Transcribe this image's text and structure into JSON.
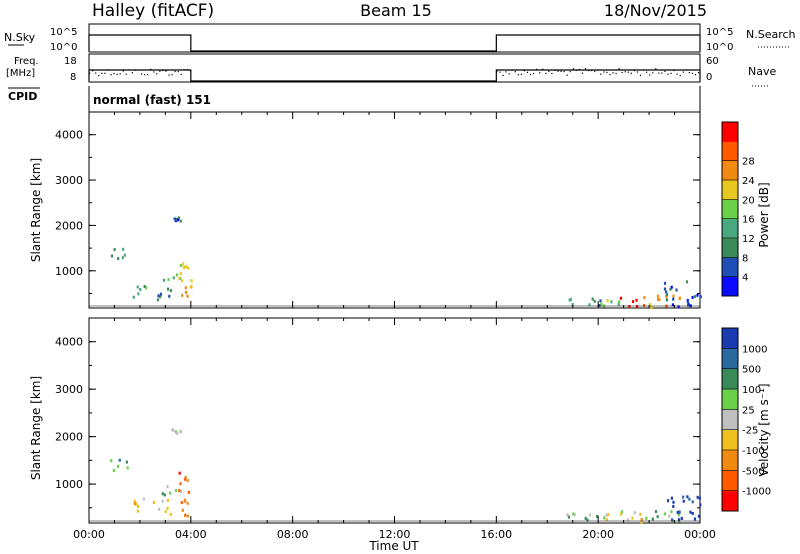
{
  "header": {
    "station": "Halley (fitACF)",
    "beam": "Beam 15",
    "date": "18/Nov/2015"
  },
  "panels": {
    "nsky": {
      "left_label": "N.Sky",
      "right_label": "N.Search",
      "ticks_left": [
        "10^5",
        "10^0"
      ],
      "ticks_right": [
        "10^5",
        "10^0"
      ]
    },
    "freq": {
      "left_label_1": "Freq.",
      "left_label_2": "[MHz]",
      "right_label": "Nave",
      "ticks_left": [
        "18",
        "8"
      ],
      "ticks_right": [
        "60",
        "0"
      ]
    },
    "cpid": {
      "label": "CPID",
      "value": "normal (fast) 151"
    }
  },
  "colors": {
    "power": [
      "#0a0aff",
      "#1f4fb5",
      "#3a8a5a",
      "#4aa880",
      "#6ad04a",
      "#e8c820",
      "#f08a10",
      "#ff5a00",
      "#ff0000"
    ],
    "velocity": [
      "#ff0000",
      "#ff5a00",
      "#f08a10",
      "#f0c020",
      "#c0c0c0",
      "#6ad04a",
      "#3a8a5a",
      "#2a6aa0",
      "#1a3ab0"
    ]
  },
  "chart_data": [
    {
      "type": "heatmap",
      "name": "power",
      "ylabel": "Slant Range [km]",
      "yticks": [
        "1000",
        "2000",
        "3000",
        "4000"
      ],
      "ylim": [
        180,
        4500
      ],
      "xlim": [
        0,
        24
      ],
      "colorbar_label": "Power [dB]",
      "colorbar_ticks": [
        "4",
        "8",
        "12",
        "16",
        "20",
        "24",
        "28"
      ],
      "colorbar_range": [
        0,
        32
      ],
      "clusters": [
        {
          "t": [
            0.8,
            1.5
          ],
          "r": [
            1300,
            1550
          ],
          "level": 2
        },
        {
          "t": [
            1.5,
            2.2
          ],
          "r": [
            450,
            800
          ],
          "level": 3
        },
        {
          "t": [
            2.4,
            3.2
          ],
          "r": [
            350,
            700
          ],
          "level": 2
        },
        {
          "t": [
            2.8,
            3.6
          ],
          "r": [
            800,
            1000
          ],
          "level": 4
        },
        {
          "t": [
            3.5,
            4.0
          ],
          "r": [
            650,
            1300
          ],
          "level": 5
        },
        {
          "t": [
            3.6,
            4.0
          ],
          "r": [
            350,
            700
          ],
          "level": 6
        },
        {
          "t": [
            3.2,
            3.6
          ],
          "r": [
            2100,
            2200
          ],
          "level": 1
        },
        {
          "t": [
            18.5,
            20.2
          ],
          "r": [
            230,
            420
          ],
          "level": 2
        },
        {
          "t": [
            20.0,
            21.0
          ],
          "r": [
            250,
            450
          ],
          "level": 4
        },
        {
          "t": [
            20.8,
            22.0
          ],
          "r": [
            220,
            430
          ],
          "level": 8
        },
        {
          "t": [
            21.5,
            23.2
          ],
          "r": [
            220,
            480
          ],
          "level": 6
        },
        {
          "t": [
            22.5,
            24.0
          ],
          "r": [
            230,
            800
          ],
          "level": 1
        }
      ]
    },
    {
      "type": "heatmap",
      "name": "velocity",
      "ylabel": "Slant Range [km]",
      "yticks": [
        "1000",
        "2000",
        "3000",
        "4000"
      ],
      "ylim": [
        180,
        4500
      ],
      "xlim": [
        0,
        24
      ],
      "xticks": [
        "00:00",
        "04:00",
        "08:00",
        "12:00",
        "16:00",
        "20:00",
        "00:00"
      ],
      "xlabel": "Time UT",
      "colorbar_label": "Velocity [m s⁻¹]",
      "colorbar_ticks": [
        "-1000",
        "-500",
        "-100",
        "-25",
        "25",
        "100",
        "500",
        "1000"
      ],
      "colorbar_range": [
        -1250,
        1250
      ],
      "clusters": [
        {
          "t": [
            0.8,
            1.5
          ],
          "r": [
            1300,
            1550
          ],
          "level": 6
        },
        {
          "t": [
            1.5,
            2.2
          ],
          "r": [
            450,
            800
          ],
          "level": 3
        },
        {
          "t": [
            2.4,
            3.2
          ],
          "r": [
            350,
            700
          ],
          "level": 3
        },
        {
          "t": [
            2.8,
            3.6
          ],
          "r": [
            800,
            1000
          ],
          "level": 5
        },
        {
          "t": [
            3.5,
            4.0
          ],
          "r": [
            650,
            1300
          ],
          "level": 1
        },
        {
          "t": [
            3.6,
            4.0
          ],
          "r": [
            350,
            700
          ],
          "level": 2
        },
        {
          "t": [
            3.2,
            3.6
          ],
          "r": [
            2100,
            2200
          ],
          "level": 4
        },
        {
          "t": [
            18.5,
            20.2
          ],
          "r": [
            230,
            420
          ],
          "level": 5
        },
        {
          "t": [
            20.0,
            21.0
          ],
          "r": [
            250,
            450
          ],
          "level": 4
        },
        {
          "t": [
            20.8,
            22.0
          ],
          "r": [
            220,
            430
          ],
          "level": 3
        },
        {
          "t": [
            21.5,
            23.2
          ],
          "r": [
            220,
            480
          ],
          "level": 5
        },
        {
          "t": [
            22.5,
            24.0
          ],
          "r": [
            230,
            800
          ],
          "level": 8
        }
      ]
    },
    {
      "type": "line",
      "name": "nsky-nsearch",
      "segments": [
        {
          "x": [
            0.0,
            4.0
          ],
          "level": "high"
        },
        {
          "x": [
            16.0,
            24.0
          ],
          "level": "high"
        }
      ]
    },
    {
      "type": "line",
      "name": "freq-nave",
      "segments": [
        {
          "x": [
            0.0,
            4.0
          ],
          "level": "high"
        },
        {
          "x": [
            16.0,
            24.0
          ],
          "level": "high"
        }
      ]
    }
  ]
}
